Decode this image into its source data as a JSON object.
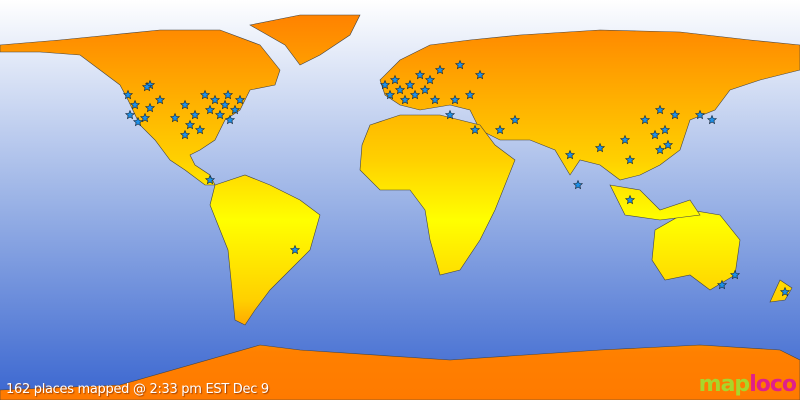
{
  "caption": "162 places mapped @ 2:33 pm EST Dec 9",
  "logo": {
    "part1": "map",
    "part2": "loco"
  },
  "colors": {
    "ocean_top": "#ffffff",
    "ocean_bottom": "#3a66d0",
    "land_top": "#ff7a00",
    "land_bottom": "#ffff00",
    "marker": "#1e90e8"
  },
  "marker_icon": "star-icon"
}
